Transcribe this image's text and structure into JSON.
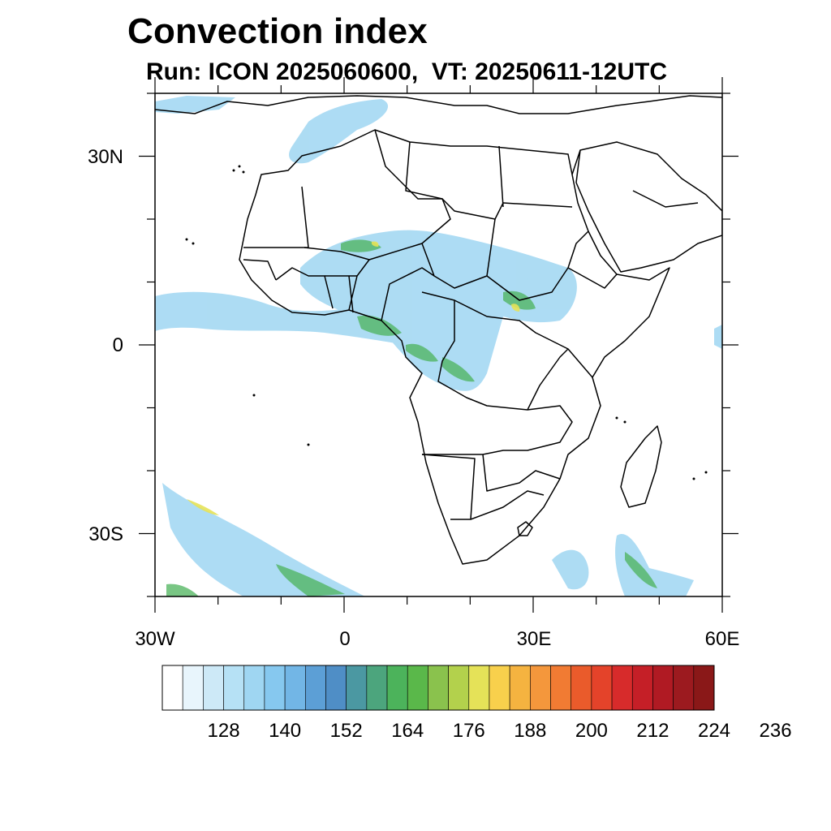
{
  "title": "Convection index",
  "subtitle": "Run: ICON 2025060600,  VT: 20250611-12UTC",
  "map": {
    "extent": {
      "lon": [
        -30,
        60
      ],
      "lat": [
        -40,
        40
      ]
    },
    "lat_labels": [
      "30N",
      "0",
      "30S"
    ],
    "lon_labels": [
      "30W",
      "0",
      "30E",
      "60E"
    ]
  },
  "colorbar": {
    "colors": [
      "#ffffff",
      "#e8f5fc",
      "#cde9f7",
      "#b6e1f5",
      "#9fd6f2",
      "#86c8ef",
      "#72b6e6",
      "#5c9fd6",
      "#4f8ec6",
      "#4b98a2",
      "#4ca57d",
      "#4cb35b",
      "#5ab84a",
      "#8ac24d",
      "#b3d14c",
      "#e5e258",
      "#f8d04c",
      "#f5b340",
      "#f4973c",
      "#f17b33",
      "#ea5b2b",
      "#e4432a",
      "#d72b2b",
      "#c51f27",
      "#b01a23",
      "#9c1a1f",
      "#8a1818"
    ],
    "labels": [
      "128",
      "140",
      "152",
      "164",
      "176",
      "188",
      "200",
      "212",
      "224",
      "236"
    ]
  }
}
